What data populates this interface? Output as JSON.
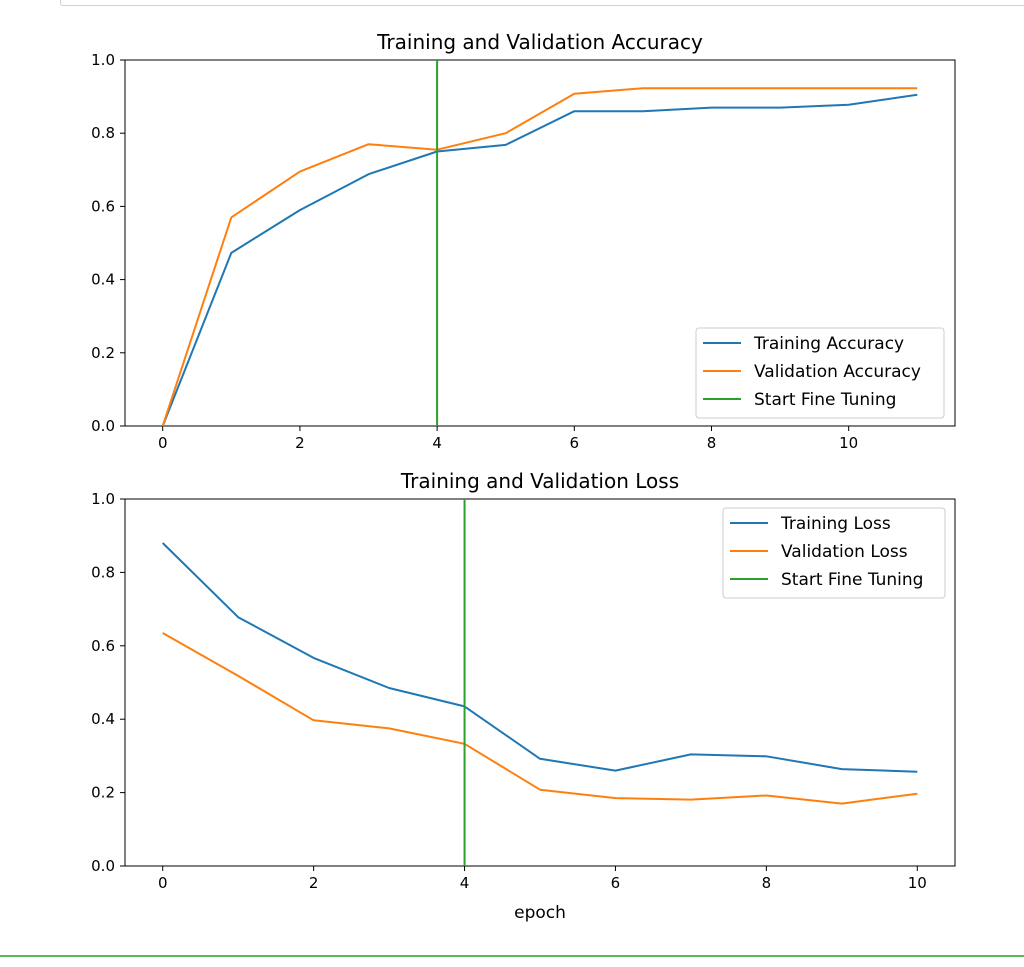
{
  "colors": {
    "training": "#1f77b4",
    "validation": "#ff7f0e",
    "fine_tune": "#2ca02c",
    "frame": "#5cb85c"
  },
  "chart_data": [
    {
      "type": "line",
      "title": "Training and Validation Accuracy",
      "xlabel": "",
      "ylabel": "",
      "xlim": [
        -0.55,
        11.55
      ],
      "ylim": [
        0,
        1.0
      ],
      "xticks": [
        0,
        2,
        4,
        6,
        8,
        10
      ],
      "yticks": [
        0.0,
        0.2,
        0.4,
        0.6,
        0.8,
        1.0
      ],
      "tick_labels_x": [
        "0",
        "2",
        "4",
        "6",
        "8",
        "10"
      ],
      "tick_labels_y": [
        "0.0",
        "0.2",
        "0.4",
        "0.6",
        "0.8",
        "1.0"
      ],
      "legend_position": "lower-right",
      "series": [
        {
          "name": "Training Accuracy",
          "color": "#1f77b4",
          "x": [
            0,
            1,
            2,
            3,
            4,
            5,
            6,
            7,
            8,
            9,
            10,
            11
          ],
          "values": [
            0.0,
            0.473,
            0.59,
            0.688,
            0.75,
            0.768,
            0.86,
            0.86,
            0.87,
            0.87,
            0.878,
            0.905
          ]
        },
        {
          "name": "Validation Accuracy",
          "color": "#ff7f0e",
          "x": [
            0,
            1,
            2,
            3,
            4,
            5,
            6,
            7,
            8,
            9,
            10,
            11
          ],
          "values": [
            0.0,
            0.57,
            0.695,
            0.77,
            0.755,
            0.8,
            0.908,
            0.923,
            0.923,
            0.923,
            0.923,
            0.923
          ]
        }
      ],
      "vline": {
        "name": "Start Fine Tuning",
        "x": 4,
        "color": "#2ca02c"
      }
    },
    {
      "type": "line",
      "title": "Training and Validation Loss",
      "xlabel": "epoch",
      "ylabel": "",
      "xlim": [
        -0.5,
        10.5
      ],
      "ylim": [
        0,
        1.0
      ],
      "xticks": [
        0,
        2,
        4,
        6,
        8,
        10
      ],
      "yticks": [
        0.0,
        0.2,
        0.4,
        0.6,
        0.8,
        1.0
      ],
      "tick_labels_x": [
        "0",
        "2",
        "4",
        "6",
        "8",
        "10"
      ],
      "tick_labels_y": [
        "0.0",
        "0.2",
        "0.4",
        "0.6",
        "0.8",
        "1.0"
      ],
      "legend_position": "upper-right",
      "series": [
        {
          "name": "Training Loss",
          "color": "#1f77b4",
          "x": [
            0,
            1,
            2,
            3,
            4,
            5,
            6,
            7,
            8,
            9,
            10
          ],
          "values": [
            0.88,
            0.678,
            0.567,
            0.485,
            0.435,
            0.292,
            0.26,
            0.304,
            0.299,
            0.264,
            0.257
          ]
        },
        {
          "name": "Validation Loss",
          "color": "#ff7f0e",
          "x": [
            0,
            1,
            2,
            3,
            4,
            5,
            6,
            7,
            8,
            9,
            10
          ],
          "values": [
            0.635,
            0.518,
            0.397,
            0.375,
            0.333,
            0.208,
            0.185,
            0.181,
            0.192,
            0.17,
            0.197
          ]
        }
      ],
      "vline": {
        "name": "Start Fine Tuning",
        "x": 4,
        "color": "#2ca02c"
      }
    }
  ]
}
